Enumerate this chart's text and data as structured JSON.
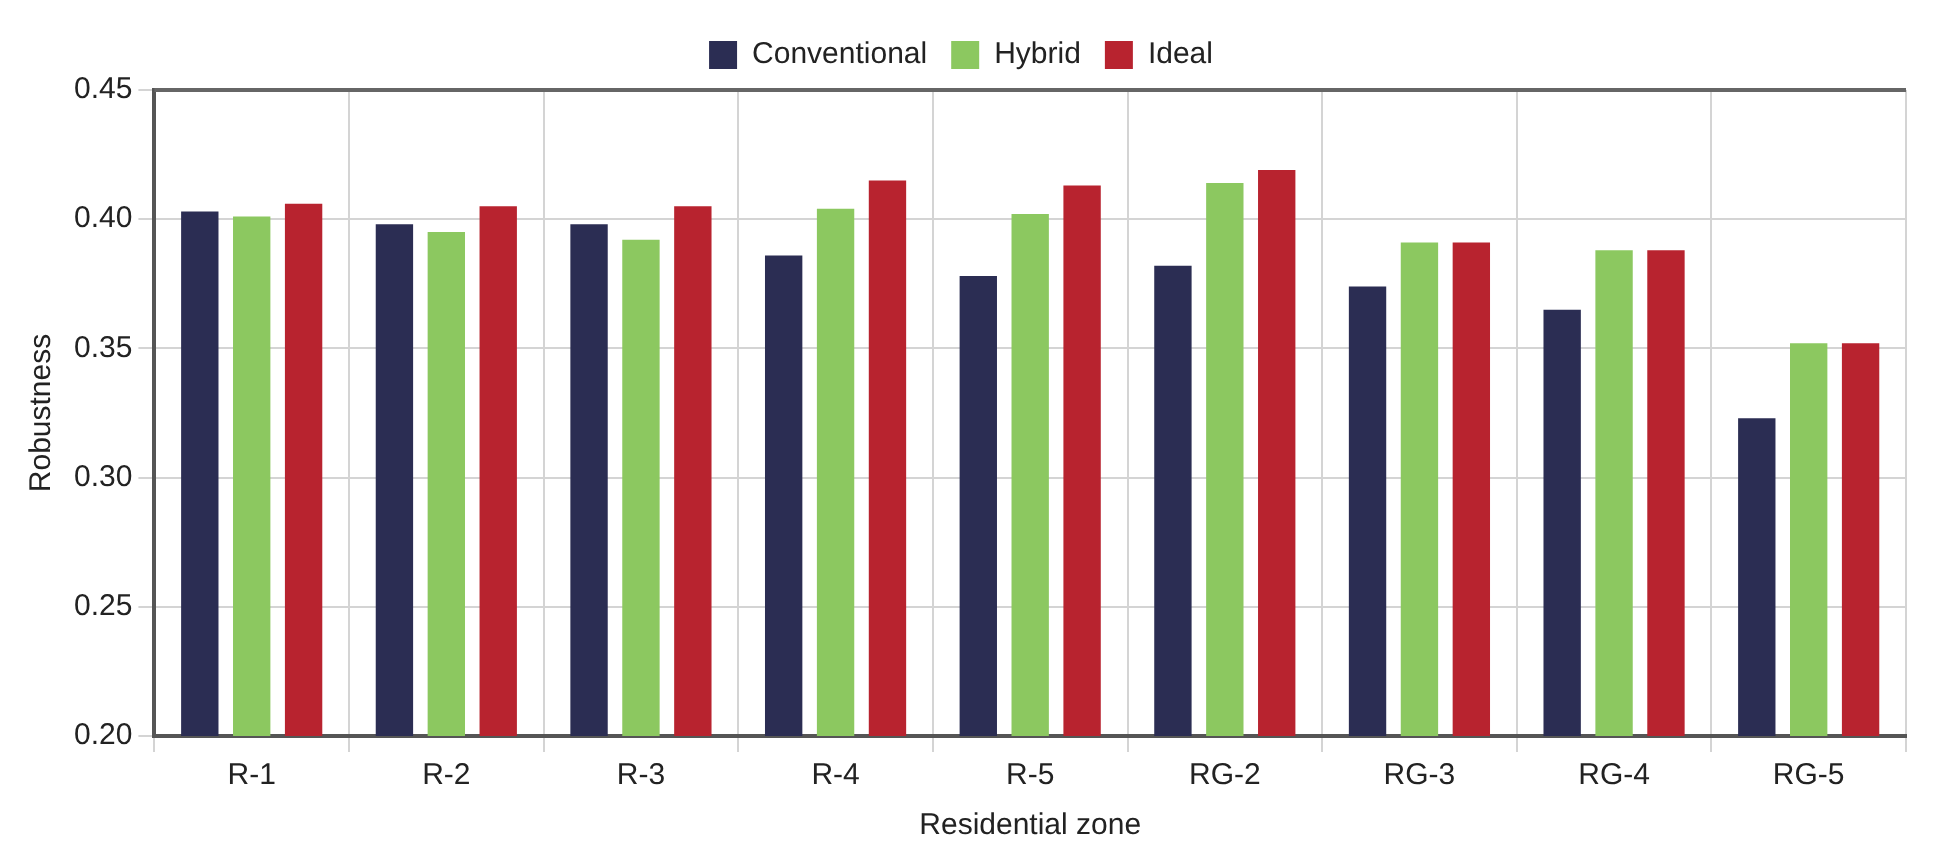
{
  "chart_data": {
    "type": "bar",
    "xlabel": "Residential zone",
    "ylabel": "Robustness",
    "categories": [
      "R-1",
      "R-2",
      "R-3",
      "R-4",
      "R-5",
      "RG-2",
      "RG-3",
      "RG-4",
      "RG-5"
    ],
    "series": [
      {
        "name": "Conventional",
        "color": "#2b2d53",
        "values": [
          0.403,
          0.398,
          0.398,
          0.386,
          0.378,
          0.382,
          0.374,
          0.365,
          0.323
        ]
      },
      {
        "name": "Hybrid",
        "color": "#8cc860",
        "values": [
          0.401,
          0.395,
          0.392,
          0.404,
          0.402,
          0.414,
          0.391,
          0.388,
          0.352
        ]
      },
      {
        "name": "Ideal",
        "color": "#b8232f",
        "values": [
          0.406,
          0.405,
          0.405,
          0.415,
          0.413,
          0.419,
          0.391,
          0.388,
          0.352
        ]
      }
    ],
    "ylim": [
      0.2,
      0.45
    ],
    "yticks": [
      {
        "value": 0.2,
        "label": "0.20"
      },
      {
        "value": 0.25,
        "label": "0.25"
      },
      {
        "value": 0.3,
        "label": "0.30"
      },
      {
        "value": 0.35,
        "label": "0.35"
      },
      {
        "value": 0.4,
        "label": "0.40"
      },
      {
        "value": 0.45,
        "label": "0.45"
      }
    ],
    "grid": true,
    "legend": "top"
  }
}
